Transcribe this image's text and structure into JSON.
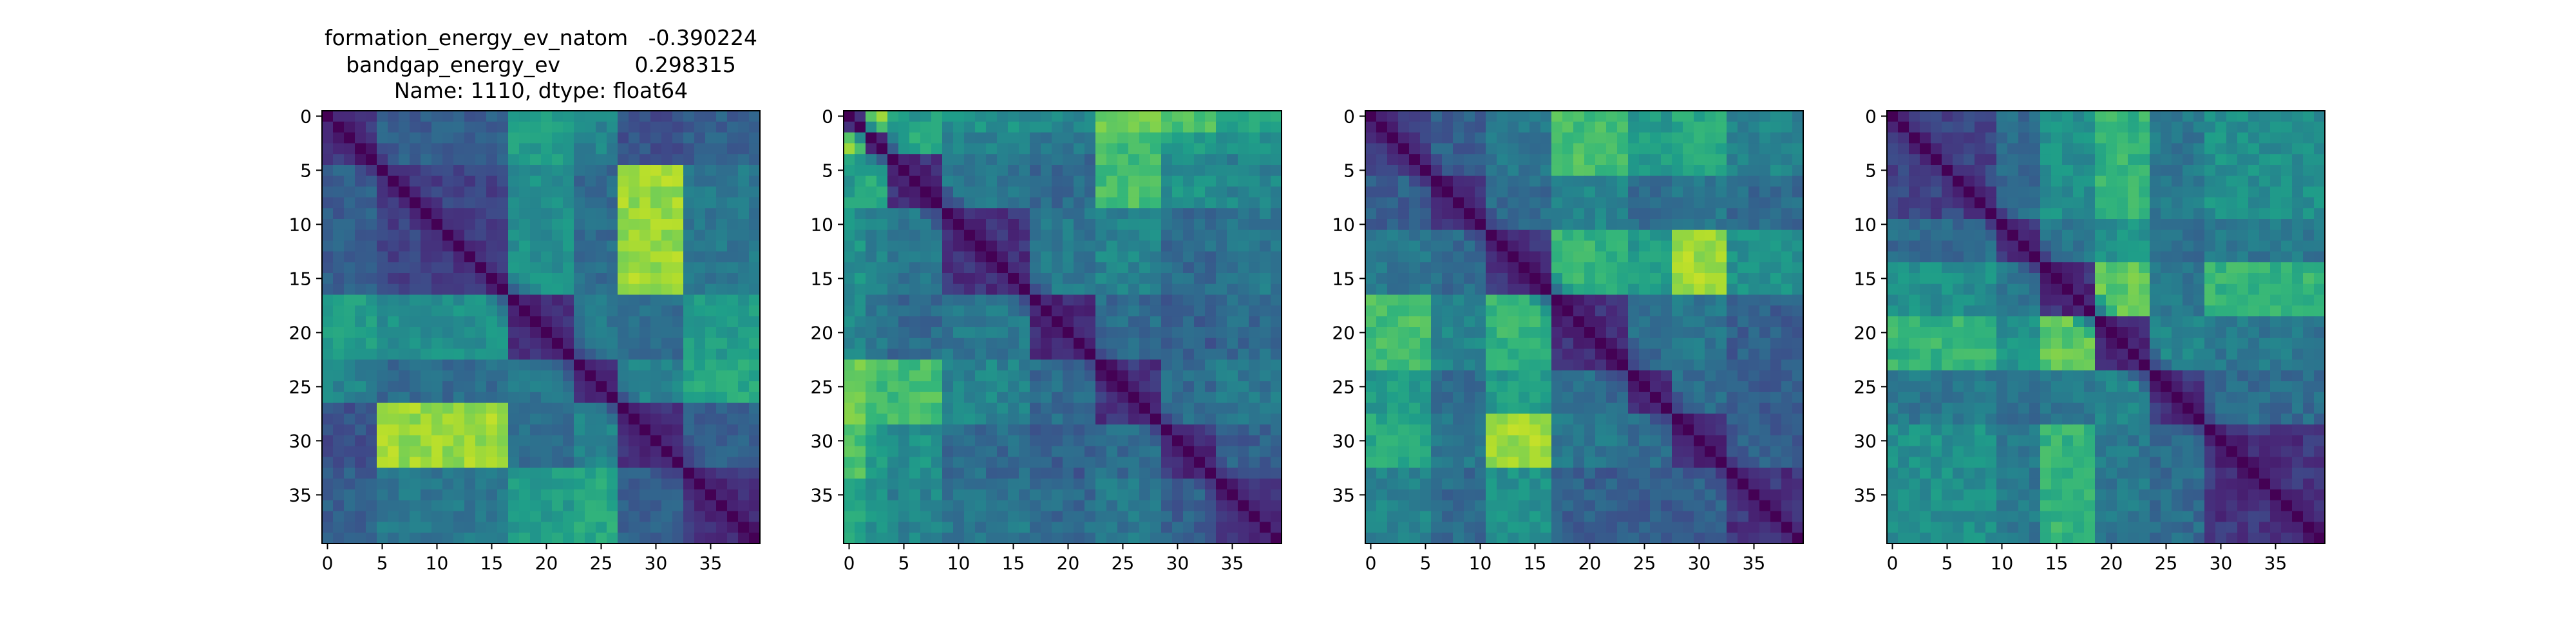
{
  "title": {
    "lines": [
      "formation_energy_ev_natom   -0.390224",
      "bandgap_energy_ev           0.298315",
      "Name: 1110, dtype: float64"
    ]
  },
  "chart_data": [
    {
      "type": "heatmap",
      "rows": 40,
      "cols": 40,
      "colormap": "viridis",
      "diagonal_value": 0,
      "xticks": [
        0,
        5,
        10,
        15,
        20,
        25,
        30,
        35
      ],
      "yticks": [
        0,
        5,
        10,
        15,
        20,
        25,
        30,
        35
      ],
      "xlim": [
        -0.5,
        39.5
      ],
      "ylim": [
        39.5,
        -0.5
      ],
      "blocks": [
        0,
        5,
        17,
        23,
        27,
        33,
        40
      ],
      "block_levels": [
        [
          0.15,
          0.3,
          0.55,
          0.45,
          0.25,
          0.3
        ],
        [
          0.3,
          0.2,
          0.5,
          0.35,
          0.85,
          0.4
        ],
        [
          0.55,
          0.5,
          0.15,
          0.4,
          0.35,
          0.55
        ],
        [
          0.45,
          0.35,
          0.4,
          0.15,
          0.45,
          0.6
        ],
        [
          0.25,
          0.85,
          0.35,
          0.45,
          0.15,
          0.3
        ],
        [
          0.3,
          0.4,
          0.55,
          0.6,
          0.3,
          0.15
        ]
      ],
      "noise": 0.12
    },
    {
      "type": "heatmap",
      "rows": 40,
      "cols": 40,
      "colormap": "viridis",
      "diagonal_value": 0,
      "xticks": [
        0,
        5,
        10,
        15,
        20,
        25,
        30,
        35
      ],
      "yticks": [
        0,
        5,
        10,
        15,
        20,
        25,
        30,
        35
      ],
      "xlim": [
        -0.5,
        39.5
      ],
      "ylim": [
        39.5,
        -0.5
      ],
      "blocks": [
        0,
        2,
        4,
        9,
        17,
        23,
        29,
        34,
        40
      ],
      "block_levels": [
        [
          0.2,
          0.9,
          0.55,
          0.5,
          0.45,
          0.75,
          0.7,
          0.6
        ],
        [
          0.9,
          0.2,
          0.6,
          0.45,
          0.4,
          0.7,
          0.55,
          0.5
        ],
        [
          0.55,
          0.6,
          0.15,
          0.4,
          0.35,
          0.7,
          0.5,
          0.45
        ],
        [
          0.5,
          0.45,
          0.4,
          0.15,
          0.4,
          0.45,
          0.35,
          0.4
        ],
        [
          0.45,
          0.4,
          0.35,
          0.4,
          0.15,
          0.35,
          0.3,
          0.35
        ],
        [
          0.75,
          0.7,
          0.7,
          0.45,
          0.35,
          0.15,
          0.35,
          0.4
        ],
        [
          0.7,
          0.55,
          0.5,
          0.35,
          0.3,
          0.35,
          0.15,
          0.3
        ],
        [
          0.6,
          0.5,
          0.45,
          0.4,
          0.35,
          0.4,
          0.3,
          0.15
        ]
      ],
      "noise": 0.14
    },
    {
      "type": "heatmap",
      "rows": 40,
      "cols": 40,
      "colormap": "viridis",
      "diagonal_value": 0,
      "xticks": [
        0,
        5,
        10,
        15,
        20,
        25,
        30,
        35
      ],
      "yticks": [
        0,
        5,
        10,
        15,
        20,
        25,
        30,
        35
      ],
      "xlim": [
        -0.5,
        39.5
      ],
      "ylim": [
        39.5,
        -0.5
      ],
      "blocks": [
        0,
        6,
        11,
        17,
        24,
        28,
        33,
        40
      ],
      "block_levels": [
        [
          0.2,
          0.3,
          0.4,
          0.7,
          0.55,
          0.6,
          0.45
        ],
        [
          0.3,
          0.15,
          0.35,
          0.45,
          0.35,
          0.4,
          0.35
        ],
        [
          0.4,
          0.35,
          0.15,
          0.65,
          0.55,
          0.85,
          0.5
        ],
        [
          0.7,
          0.45,
          0.65,
          0.15,
          0.35,
          0.4,
          0.3
        ],
        [
          0.55,
          0.35,
          0.55,
          0.35,
          0.15,
          0.35,
          0.3
        ],
        [
          0.6,
          0.4,
          0.85,
          0.4,
          0.35,
          0.15,
          0.3
        ],
        [
          0.45,
          0.35,
          0.5,
          0.3,
          0.3,
          0.3,
          0.15
        ]
      ],
      "noise": 0.13
    },
    {
      "type": "heatmap",
      "rows": 40,
      "cols": 40,
      "colormap": "viridis",
      "diagonal_value": 0,
      "xticks": [
        0,
        5,
        10,
        15,
        20,
        25,
        30,
        35
      ],
      "yticks": [
        0,
        5,
        10,
        15,
        20,
        25,
        30,
        35
      ],
      "xlim": [
        -0.5,
        39.5
      ],
      "ylim": [
        39.5,
        -0.5
      ],
      "blocks": [
        0,
        10,
        14,
        19,
        24,
        29,
        40
      ],
      "block_levels": [
        [
          0.2,
          0.35,
          0.5,
          0.65,
          0.4,
          0.5
        ],
        [
          0.35,
          0.15,
          0.4,
          0.5,
          0.35,
          0.4
        ],
        [
          0.5,
          0.4,
          0.15,
          0.75,
          0.4,
          0.65
        ],
        [
          0.65,
          0.5,
          0.75,
          0.15,
          0.45,
          0.4
        ],
        [
          0.4,
          0.35,
          0.4,
          0.45,
          0.15,
          0.35
        ],
        [
          0.5,
          0.4,
          0.65,
          0.4,
          0.35,
          0.15
        ]
      ],
      "noise": 0.13
    }
  ]
}
